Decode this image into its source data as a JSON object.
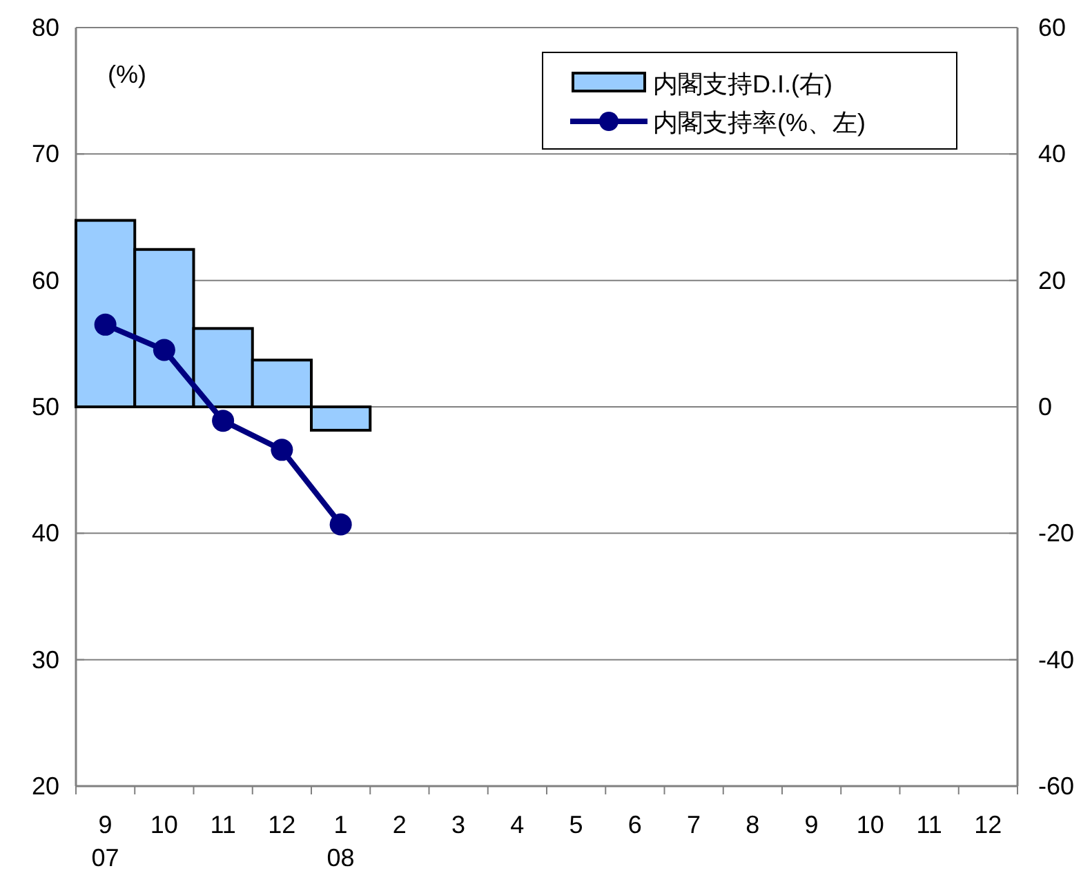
{
  "chart_data": {
    "type": "bar",
    "ylabel": "(%)",
    "categories": [
      "9\n07",
      "10",
      "11",
      "12",
      "1\n08",
      "2",
      "3",
      "4",
      "5",
      "6",
      "7",
      "8",
      "9",
      "10",
      "11",
      "12"
    ],
    "series": [
      {
        "name": "内閣支持D.I.(右)",
        "axis": "y2",
        "color": "#99ccff",
        "values": [
          29.5,
          24.9,
          12.4,
          7.4,
          -3.7,
          null,
          null,
          null,
          null,
          null,
          null,
          null,
          null,
          null,
          null,
          null
        ]
      },
      {
        "name": "内閣支持率(%、左)",
        "type": "line",
        "color": "#000080",
        "marker": "circle",
        "values": [
          56.5,
          54.5,
          48.9,
          46.6,
          40.7,
          null,
          null,
          null,
          null,
          null,
          null,
          null,
          null,
          null,
          null,
          null
        ]
      }
    ],
    "ylim": [
      20,
      80
    ],
    "yticks": [
      20,
      30,
      40,
      50,
      60,
      70,
      80
    ],
    "y2lim": [
      -60,
      60
    ],
    "y2ticks": [
      -60,
      -40,
      -20,
      0,
      20,
      40,
      60
    ],
    "grid": "y",
    "legend": "top right"
  }
}
